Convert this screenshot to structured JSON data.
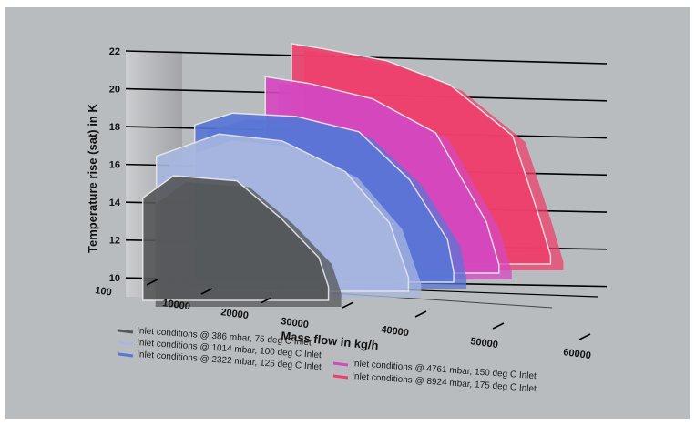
{
  "chart_data": {
    "type": "area",
    "title": "",
    "xlabel": "Mass flow in kg/h",
    "ylabel": "Temperature rise (sat) in K",
    "x_ticks": [
      "100",
      "10000",
      "20000",
      "30000",
      "40000",
      "50000",
      "60000"
    ],
    "y_ticks": [
      "10",
      "12",
      "14",
      "16",
      "18",
      "20",
      "22"
    ],
    "ylim": [
      9,
      22
    ],
    "xlim": [
      0,
      62000
    ],
    "grid": true,
    "legend_position": "bottom",
    "series": [
      {
        "name": "Inlet conditions @ 8924 mbar, 175 deg C Inlet",
        "color": "#ee3f6b",
        "x": [
          15000,
          20000,
          30000,
          40000,
          50000,
          54000,
          56000
        ],
        "y": [
          21.9,
          21.6,
          20.9,
          19.5,
          16.5,
          12.0,
          9.5
        ]
      },
      {
        "name": "Inlet conditions @ 4761 mbar, 150 deg C Inlet",
        "color": "#d548c0",
        "x": [
          13000,
          20000,
          30000,
          40000,
          48000,
          50000
        ],
        "y": [
          20.5,
          20.1,
          19.2,
          17.2,
          12.0,
          9.5
        ]
      },
      {
        "name": "Inlet conditions @ 2322 mbar, 125 deg C Inlet",
        "color": "#5876d6",
        "x": [
          4000,
          10000,
          20000,
          30000,
          38000,
          44000,
          45000
        ],
        "y": [
          18.2,
          18.9,
          18.7,
          17.8,
          15.0,
          11.5,
          9.6
        ]
      },
      {
        "name": "Inlet conditions @ 1014 mbar, 100 deg C Inlet",
        "color": "#a7b7e0",
        "x": [
          100,
          10000,
          20000,
          30000,
          37000,
          40000
        ],
        "y": [
          16.9,
          18.2,
          17.8,
          16.0,
          13.0,
          9.8
        ]
      },
      {
        "name": "Inlet conditions @ 386 mbar, 75 deg C Inlet",
        "color": "#555759",
        "x": [
          100,
          5000,
          15000,
          22000,
          28000,
          29500
        ],
        "y": [
          15.0,
          16.3,
          16.0,
          13.8,
          11.5,
          9.8
        ]
      }
    ]
  }
}
